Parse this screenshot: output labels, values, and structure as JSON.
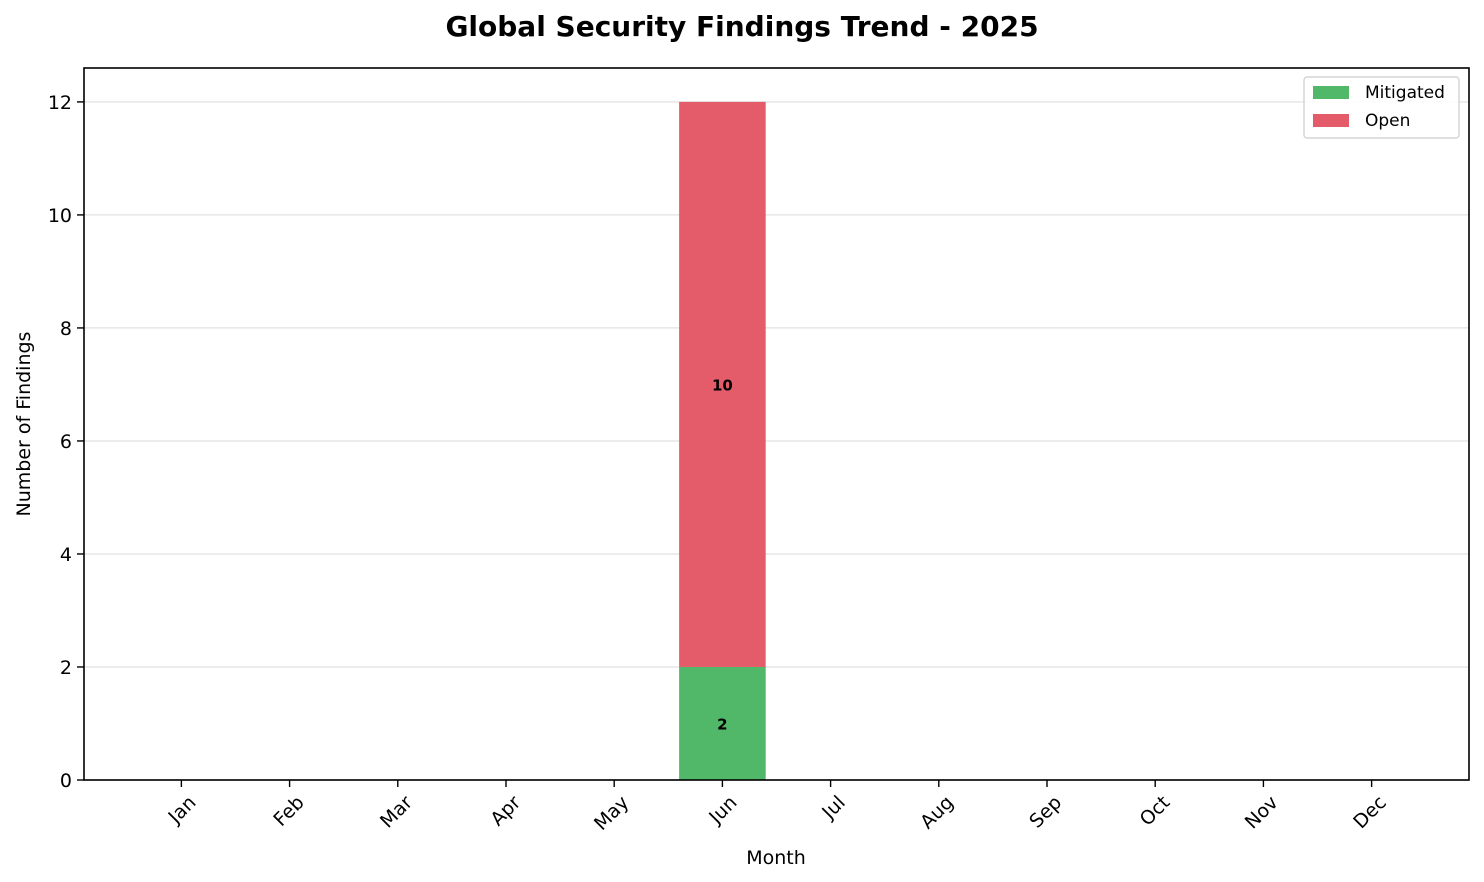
{
  "chart_data": {
    "type": "bar",
    "stacked": true,
    "title": "Global Security Findings Trend - 2025",
    "xlabel": "Month",
    "ylabel": "Number of Findings",
    "categories": [
      "Jan",
      "Feb",
      "Mar",
      "Apr",
      "May",
      "Jun",
      "Jul",
      "Aug",
      "Sep",
      "Oct",
      "Nov",
      "Dec"
    ],
    "series": [
      {
        "name": "Mitigated",
        "color": "#52b869",
        "values": [
          0,
          0,
          0,
          0,
          0,
          2,
          0,
          0,
          0,
          0,
          0,
          0
        ]
      },
      {
        "name": "Open",
        "color": "#e45c6a",
        "values": [
          0,
          0,
          0,
          0,
          0,
          10,
          0,
          0,
          0,
          0,
          0,
          0
        ]
      }
    ],
    "ylim": [
      0,
      12.6
    ],
    "yticks": [
      0,
      2,
      4,
      6,
      8,
      10,
      12
    ],
    "grid": "y",
    "legend_position": "top-right"
  }
}
